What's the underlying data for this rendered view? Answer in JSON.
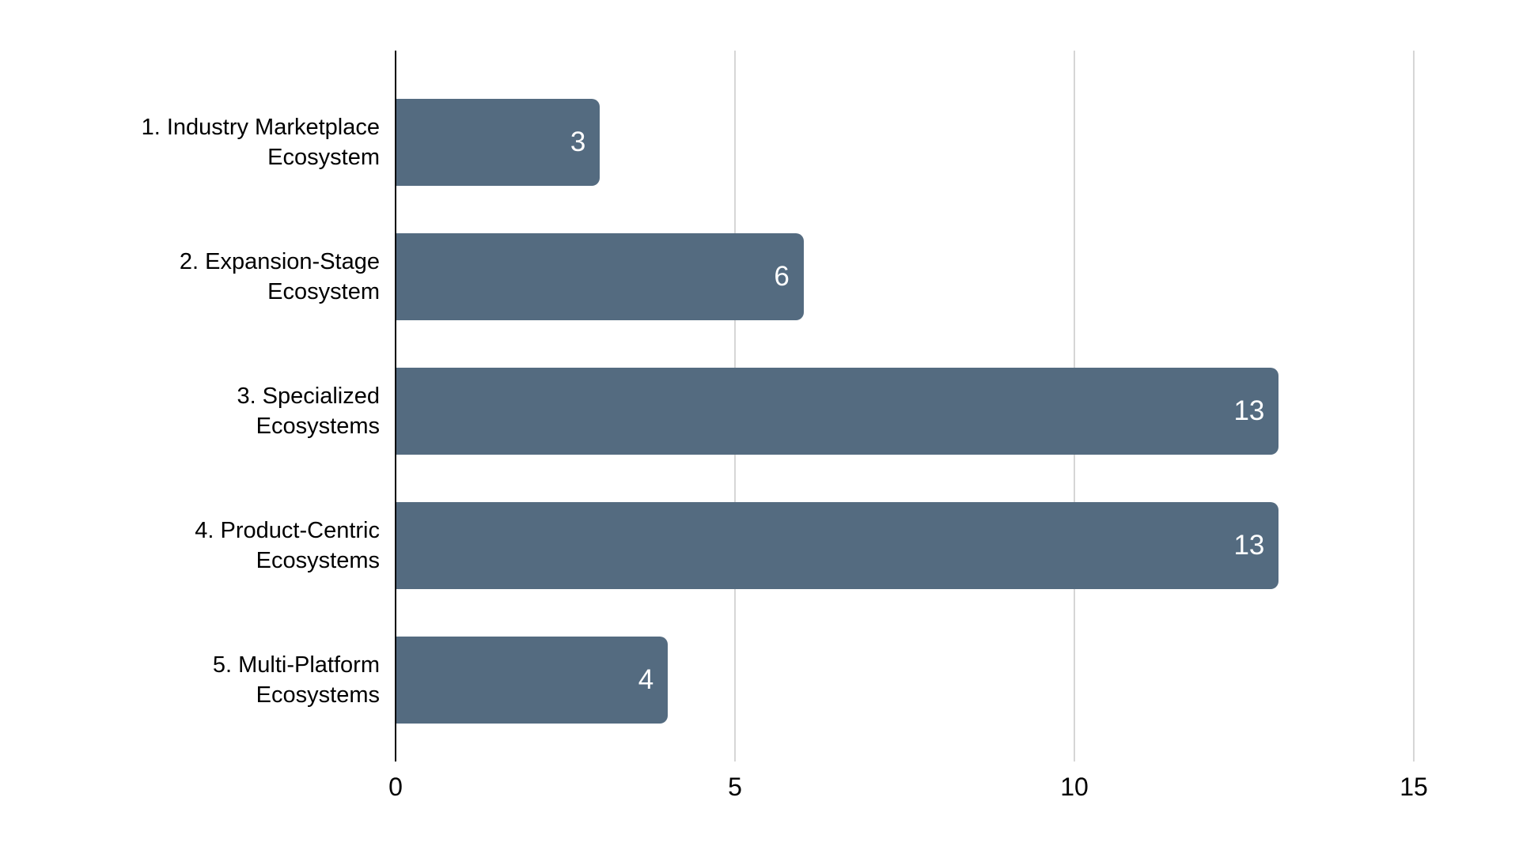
{
  "chart_data": {
    "type": "bar",
    "orientation": "horizontal",
    "title": "",
    "xlabel": "",
    "ylabel": "",
    "categories": [
      "1. Industry Marketplace Ecosystem",
      "2. Expansion-Stage Ecosystem",
      "3. Specialized Ecosystems",
      "4. Product-Centric Ecosystems",
      "5. Multi-Platform Ecosystems"
    ],
    "category_label_lines": [
      [
        "1. Industry Marketplace",
        "Ecosystem"
      ],
      [
        "2. Expansion-Stage",
        "Ecosystem"
      ],
      [
        "3. Specialized",
        "Ecosystems"
      ],
      [
        "4. Product-Centric",
        "Ecosystems"
      ],
      [
        "5. Multi-Platform",
        "Ecosystems"
      ]
    ],
    "values": [
      3,
      6,
      13,
      13,
      4
    ],
    "value_labels": [
      "3",
      "6",
      "13",
      "13",
      "4"
    ],
    "xlim": [
      0,
      15
    ],
    "xticks": [
      0,
      5,
      10,
      15
    ],
    "xtick_labels": [
      "0",
      "5",
      "10",
      "15"
    ],
    "grid": "vertical-gridlines-on",
    "legend": "none",
    "colors": {
      "bar_fill": "#546b80",
      "bar_value_text": "#ffffff",
      "axis_line": "#000000",
      "gridline": "#d6d6d6",
      "category_text": "#000000",
      "tick_text": "#000000",
      "background": "#ffffff"
    }
  }
}
